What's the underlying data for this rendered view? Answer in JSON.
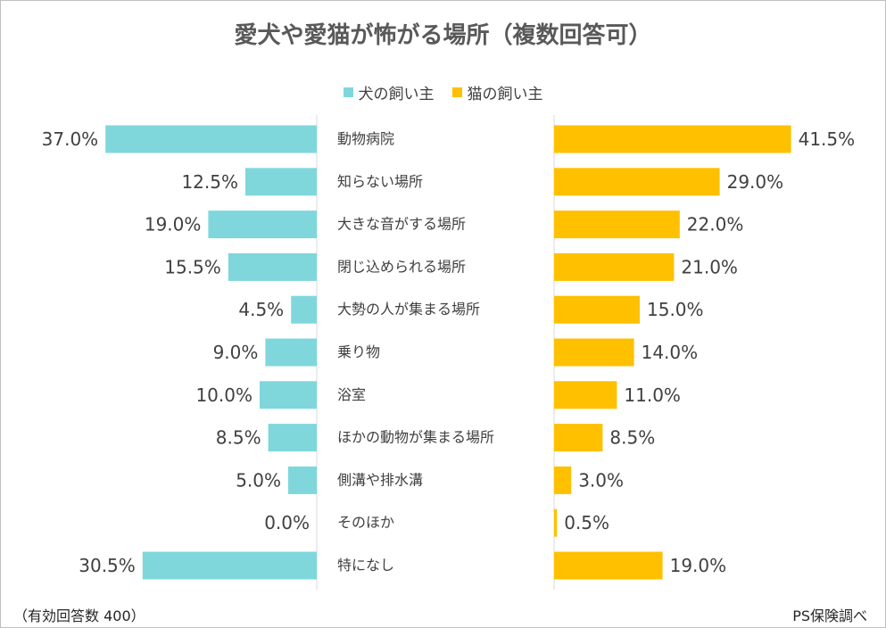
{
  "header": {
    "title": "愛犬や愛猫が怖がる場所（複数回答可）"
  },
  "footer": {
    "sample_note": "（有効回答数 400）",
    "source": "PS保険調べ"
  },
  "colors": {
    "dog": "#7fd7dc",
    "cat": "#ffc000"
  },
  "chart_data": {
    "type": "bar",
    "title": "愛犬や愛猫が怖がる場所（複数回答可）",
    "orientation": "horizontal-butterfly",
    "categories": [
      "動物病院",
      "知らない場所",
      "大きな音がする場所",
      "閉じ込められる場所",
      "大勢の人が集まる場所",
      "乗り物",
      "浴室",
      "ほかの動物が集まる場所",
      "側溝や排水溝",
      "そのほか",
      "特になし"
    ],
    "series": [
      {
        "name": "犬の飼い主",
        "values": [
          37.0,
          12.5,
          19.0,
          15.5,
          4.5,
          9.0,
          10.0,
          8.5,
          5.0,
          0.0,
          30.5
        ],
        "labels": [
          "37.0%",
          "12.5%",
          "19.0%",
          "15.5%",
          "4.5%",
          "9.0%",
          "10.0%",
          "8.5%",
          "5.0%",
          "0.0%",
          "30.5%"
        ]
      },
      {
        "name": "猫の飼い主",
        "values": [
          41.5,
          29.0,
          22.0,
          21.0,
          15.0,
          14.0,
          11.0,
          8.5,
          3.0,
          0.5,
          19.0
        ],
        "labels": [
          "41.5%",
          "29.0%",
          "22.0%",
          "21.0%",
          "15.0%",
          "14.0%",
          "11.0%",
          "8.5%",
          "3.0%",
          "0.5%",
          "19.0%"
        ]
      }
    ],
    "legend_position": "top",
    "grid": false
  }
}
